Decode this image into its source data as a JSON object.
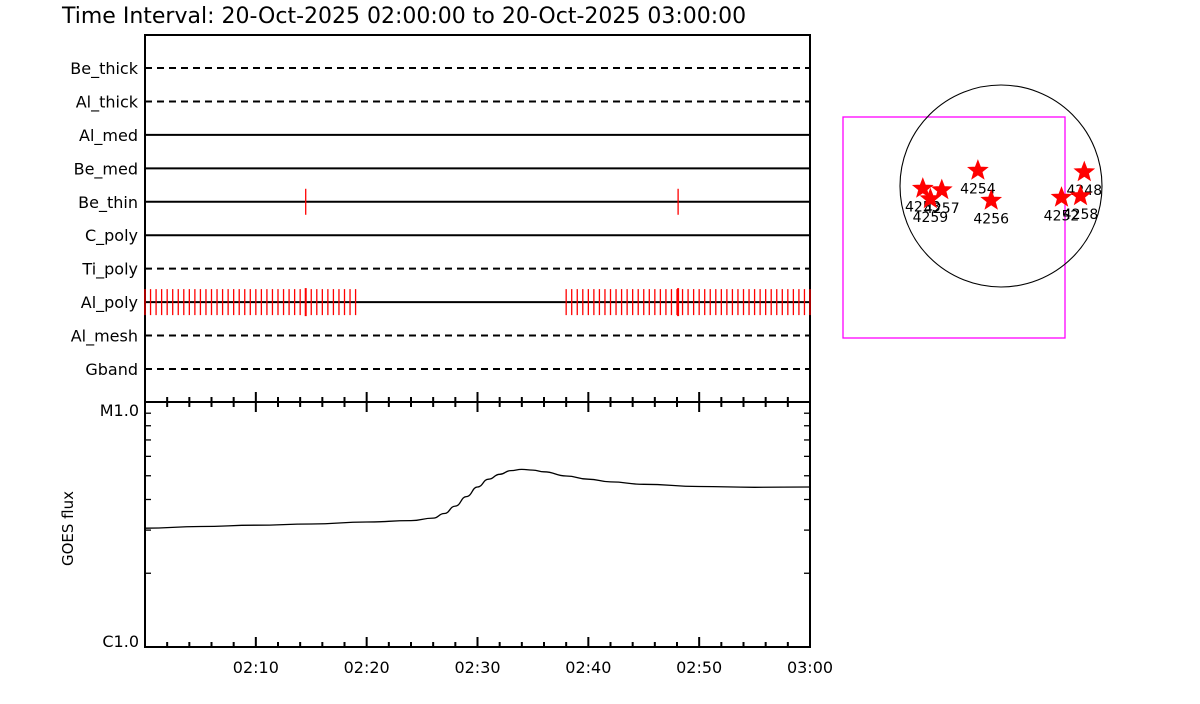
{
  "title": "Time Interval: 20-Oct-2025 02:00:00 to 20-Oct-2025 03:00:00",
  "colors": {
    "axis": "#000000",
    "events": "#ff0000",
    "fov_box": "#ff00ff",
    "stars": "#ff0000"
  },
  "chart_data": [
    {
      "type": "timeline",
      "title": "Time Interval: 20-Oct-2025 02:00:00 to 20-Oct-2025 03:00:00",
      "x_range": [
        "02:00",
        "03:00"
      ],
      "x_unit": "minutes after 02:00",
      "rows": [
        {
          "label": "Be_thick",
          "style": "dashed"
        },
        {
          "label": "Al_thick",
          "style": "dashed"
        },
        {
          "label": "Al_med",
          "style": "solid"
        },
        {
          "label": "Be_med",
          "style": "solid"
        },
        {
          "label": "Be_thin",
          "style": "solid"
        },
        {
          "label": "C_poly",
          "style": "solid"
        },
        {
          "label": "Ti_poly",
          "style": "dashed"
        },
        {
          "label": "Al_poly",
          "style": "solid"
        },
        {
          "label": "Al_mesh",
          "style": "dashed"
        },
        {
          "label": "Gband",
          "style": "dashed"
        }
      ],
      "events": [
        {
          "row": "Be_thin",
          "minutes": [
            14.5,
            48.1
          ]
        },
        {
          "row": "Al_poly",
          "minutes": [
            0.0,
            0.5,
            1.0,
            1.5,
            2.0,
            2.5,
            3.0,
            3.5,
            4.0,
            4.5,
            5.0,
            5.5,
            6.0,
            6.5,
            7.0,
            7.5,
            8.0,
            8.5,
            9.0,
            9.5,
            10.0,
            10.5,
            11.0,
            11.5,
            12.0,
            12.5,
            13.0,
            13.5,
            14.0,
            14.5,
            15.0,
            15.5,
            16.0,
            16.5,
            17.0,
            17.5,
            18.0,
            18.5,
            19.0,
            38.0,
            38.5,
            39.0,
            39.5,
            40.0,
            40.5,
            41.0,
            41.5,
            42.0,
            42.5,
            43.0,
            43.5,
            44.0,
            44.5,
            45.0,
            45.5,
            46.0,
            46.5,
            47.0,
            47.5,
            48.0,
            48.5,
            49.0,
            49.5,
            50.0,
            50.5,
            51.0,
            51.5,
            52.0,
            52.5,
            53.0,
            53.5,
            54.0,
            54.5,
            55.0,
            55.5,
            56.0,
            56.5,
            57.0,
            57.5,
            58.0,
            58.5,
            59.0,
            59.5,
            60.0
          ],
          "emphasized_minutes": [
            14.5,
            48.1
          ]
        }
      ]
    },
    {
      "type": "line",
      "ylabel": "GOES flux",
      "y_scale": "log",
      "y_ticks": [
        "M1.0",
        "C1.0"
      ],
      "ylim": [
        "C1.0",
        "M1.0"
      ],
      "x_ticks": [
        "02:10",
        "02:20",
        "02:30",
        "02:40",
        "02:50",
        "03:00"
      ],
      "x_range_minutes": [
        0,
        60
      ],
      "series": [
        {
          "x": [
            0,
            5,
            10,
            15,
            20,
            24,
            26,
            27,
            28,
            29,
            30,
            31,
            32,
            33,
            34,
            35,
            36,
            38,
            40,
            42,
            45,
            50,
            55,
            60
          ],
          "y_log_fraction": [
            0.485,
            0.492,
            0.497,
            0.502,
            0.51,
            0.516,
            0.526,
            0.545,
            0.575,
            0.614,
            0.653,
            0.685,
            0.705,
            0.72,
            0.725,
            0.722,
            0.715,
            0.698,
            0.685,
            0.674,
            0.664,
            0.655,
            0.652,
            0.653
          ]
        }
      ]
    },
    {
      "type": "scatter",
      "description": "Active region map",
      "points": [
        {
          "label": "4254",
          "x": 0.41,
          "y": 0.27
        },
        {
          "label": "4248",
          "x": 0.97,
          "y": 0.28
        },
        {
          "label": "4252",
          "x": 0.85,
          "y": 0.45
        },
        {
          "label": "4258",
          "x": 0.95,
          "y": 0.44
        },
        {
          "label": "4256",
          "x": 0.48,
          "y": 0.47
        },
        {
          "label": "4257",
          "x": 0.22,
          "y": 0.4
        },
        {
          "label": "4253",
          "x": 0.12,
          "y": 0.39
        },
        {
          "label": "4259",
          "x": 0.16,
          "y": 0.46
        }
      ]
    }
  ]
}
